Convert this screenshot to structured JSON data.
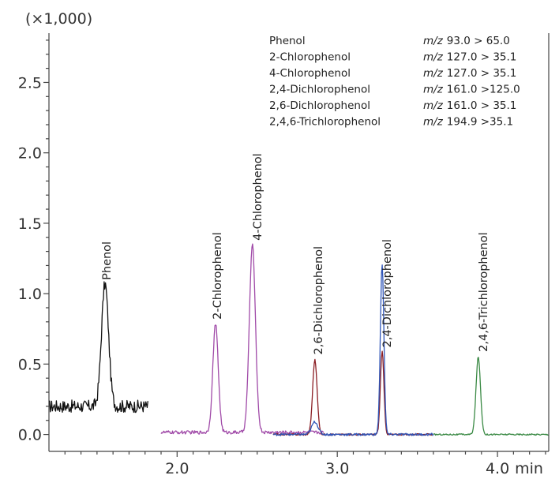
{
  "chart_data": {
    "type": "line",
    "title": "",
    "y_scale_label": "(×1,000)",
    "x_unit": "min",
    "xlim": [
      1.2,
      4.32
    ],
    "ylim": [
      -0.12,
      2.85
    ],
    "x_ticks": [
      {
        "value": 2.0,
        "label": "2.0"
      },
      {
        "value": 3.0,
        "label": "3.0"
      },
      {
        "value": 4.0,
        "label": "4.0"
      }
    ],
    "y_ticks": [
      {
        "value": 0.0,
        "label": "0.0"
      },
      {
        "value": 0.5,
        "label": "0.5"
      },
      {
        "value": 1.0,
        "label": "1.0"
      },
      {
        "value": 1.5,
        "label": "1.5"
      },
      {
        "value": 2.0,
        "label": "2.0"
      },
      {
        "value": 2.5,
        "label": "2.5"
      }
    ],
    "legend": [
      {
        "compound": "Phenol",
        "transition_prefix": "m/z",
        "transition": "93.0 > 65.0"
      },
      {
        "compound": "2-Chlorophenol",
        "transition_prefix": "m/z",
        "transition": "127.0 > 35.1"
      },
      {
        "compound": "4-Chlorophenol",
        "transition_prefix": "m/z",
        "transition": "127.0 > 35.1"
      },
      {
        "compound": "2,4-Dichlorophenol",
        "transition_prefix": "m/z",
        "transition": "161.0 >125.0"
      },
      {
        "compound": "2,6-Dichlorophenol",
        "transition_prefix": "m/z",
        "transition": "161.0 > 35.1"
      },
      {
        "compound": "2,4,6-Trichlorophenol",
        "transition_prefix": "m/z",
        "transition": "194.9 >35.1"
      }
    ],
    "series": [
      {
        "color": "#111111",
        "baseline": 0.2,
        "noise": 0.045,
        "range": [
          1.2,
          1.82
        ],
        "peaks": [
          {
            "rt": 1.55,
            "height": 0.87,
            "width": 0.022
          }
        ]
      },
      {
        "color": "#a04aa8",
        "baseline": 0.015,
        "noise": 0.012,
        "range": [
          1.9,
          2.92
        ],
        "peaks": [
          {
            "rt": 2.24,
            "height": 0.77,
            "width": 0.017
          },
          {
            "rt": 2.47,
            "height": 1.33,
            "width": 0.019
          }
        ]
      },
      {
        "color": "#8b1e24",
        "baseline": 0.0,
        "noise": 0.006,
        "range": [
          2.6,
          3.6
        ],
        "peaks": [
          {
            "rt": 2.86,
            "height": 0.53,
            "width": 0.014
          },
          {
            "rt": 3.28,
            "height": 0.59,
            "width": 0.011
          }
        ]
      },
      {
        "color": "#2f55b8",
        "baseline": 0.0,
        "noise": 0.008,
        "range": [
          2.6,
          3.6
        ],
        "peaks": [
          {
            "rt": 2.86,
            "height": 0.09,
            "width": 0.02
          },
          {
            "rt": 3.28,
            "height": 1.21,
            "width": 0.011
          }
        ]
      },
      {
        "color": "#3b8a45",
        "baseline": 0.0,
        "noise": 0.005,
        "range": [
          3.6,
          4.32
        ],
        "peaks": [
          {
            "rt": 3.88,
            "height": 0.55,
            "width": 0.014
          }
        ]
      }
    ],
    "peak_labels": [
      {
        "text": "Phenol",
        "rt": 1.56,
        "y": 1.08
      },
      {
        "text": "2-Chlorophenol",
        "rt": 2.25,
        "y": 0.8
      },
      {
        "text": "4-Chlorophenol",
        "rt": 2.5,
        "y": 1.36
      },
      {
        "text": "2,6-Dichlorophenol",
        "rt": 2.88,
        "y": 0.55
      },
      {
        "text": "2,4-Dichlorophenol",
        "rt": 3.31,
        "y": 0.6
      },
      {
        "text": "2,4,6-Trichlorophenol",
        "rt": 3.91,
        "y": 0.57
      }
    ]
  }
}
